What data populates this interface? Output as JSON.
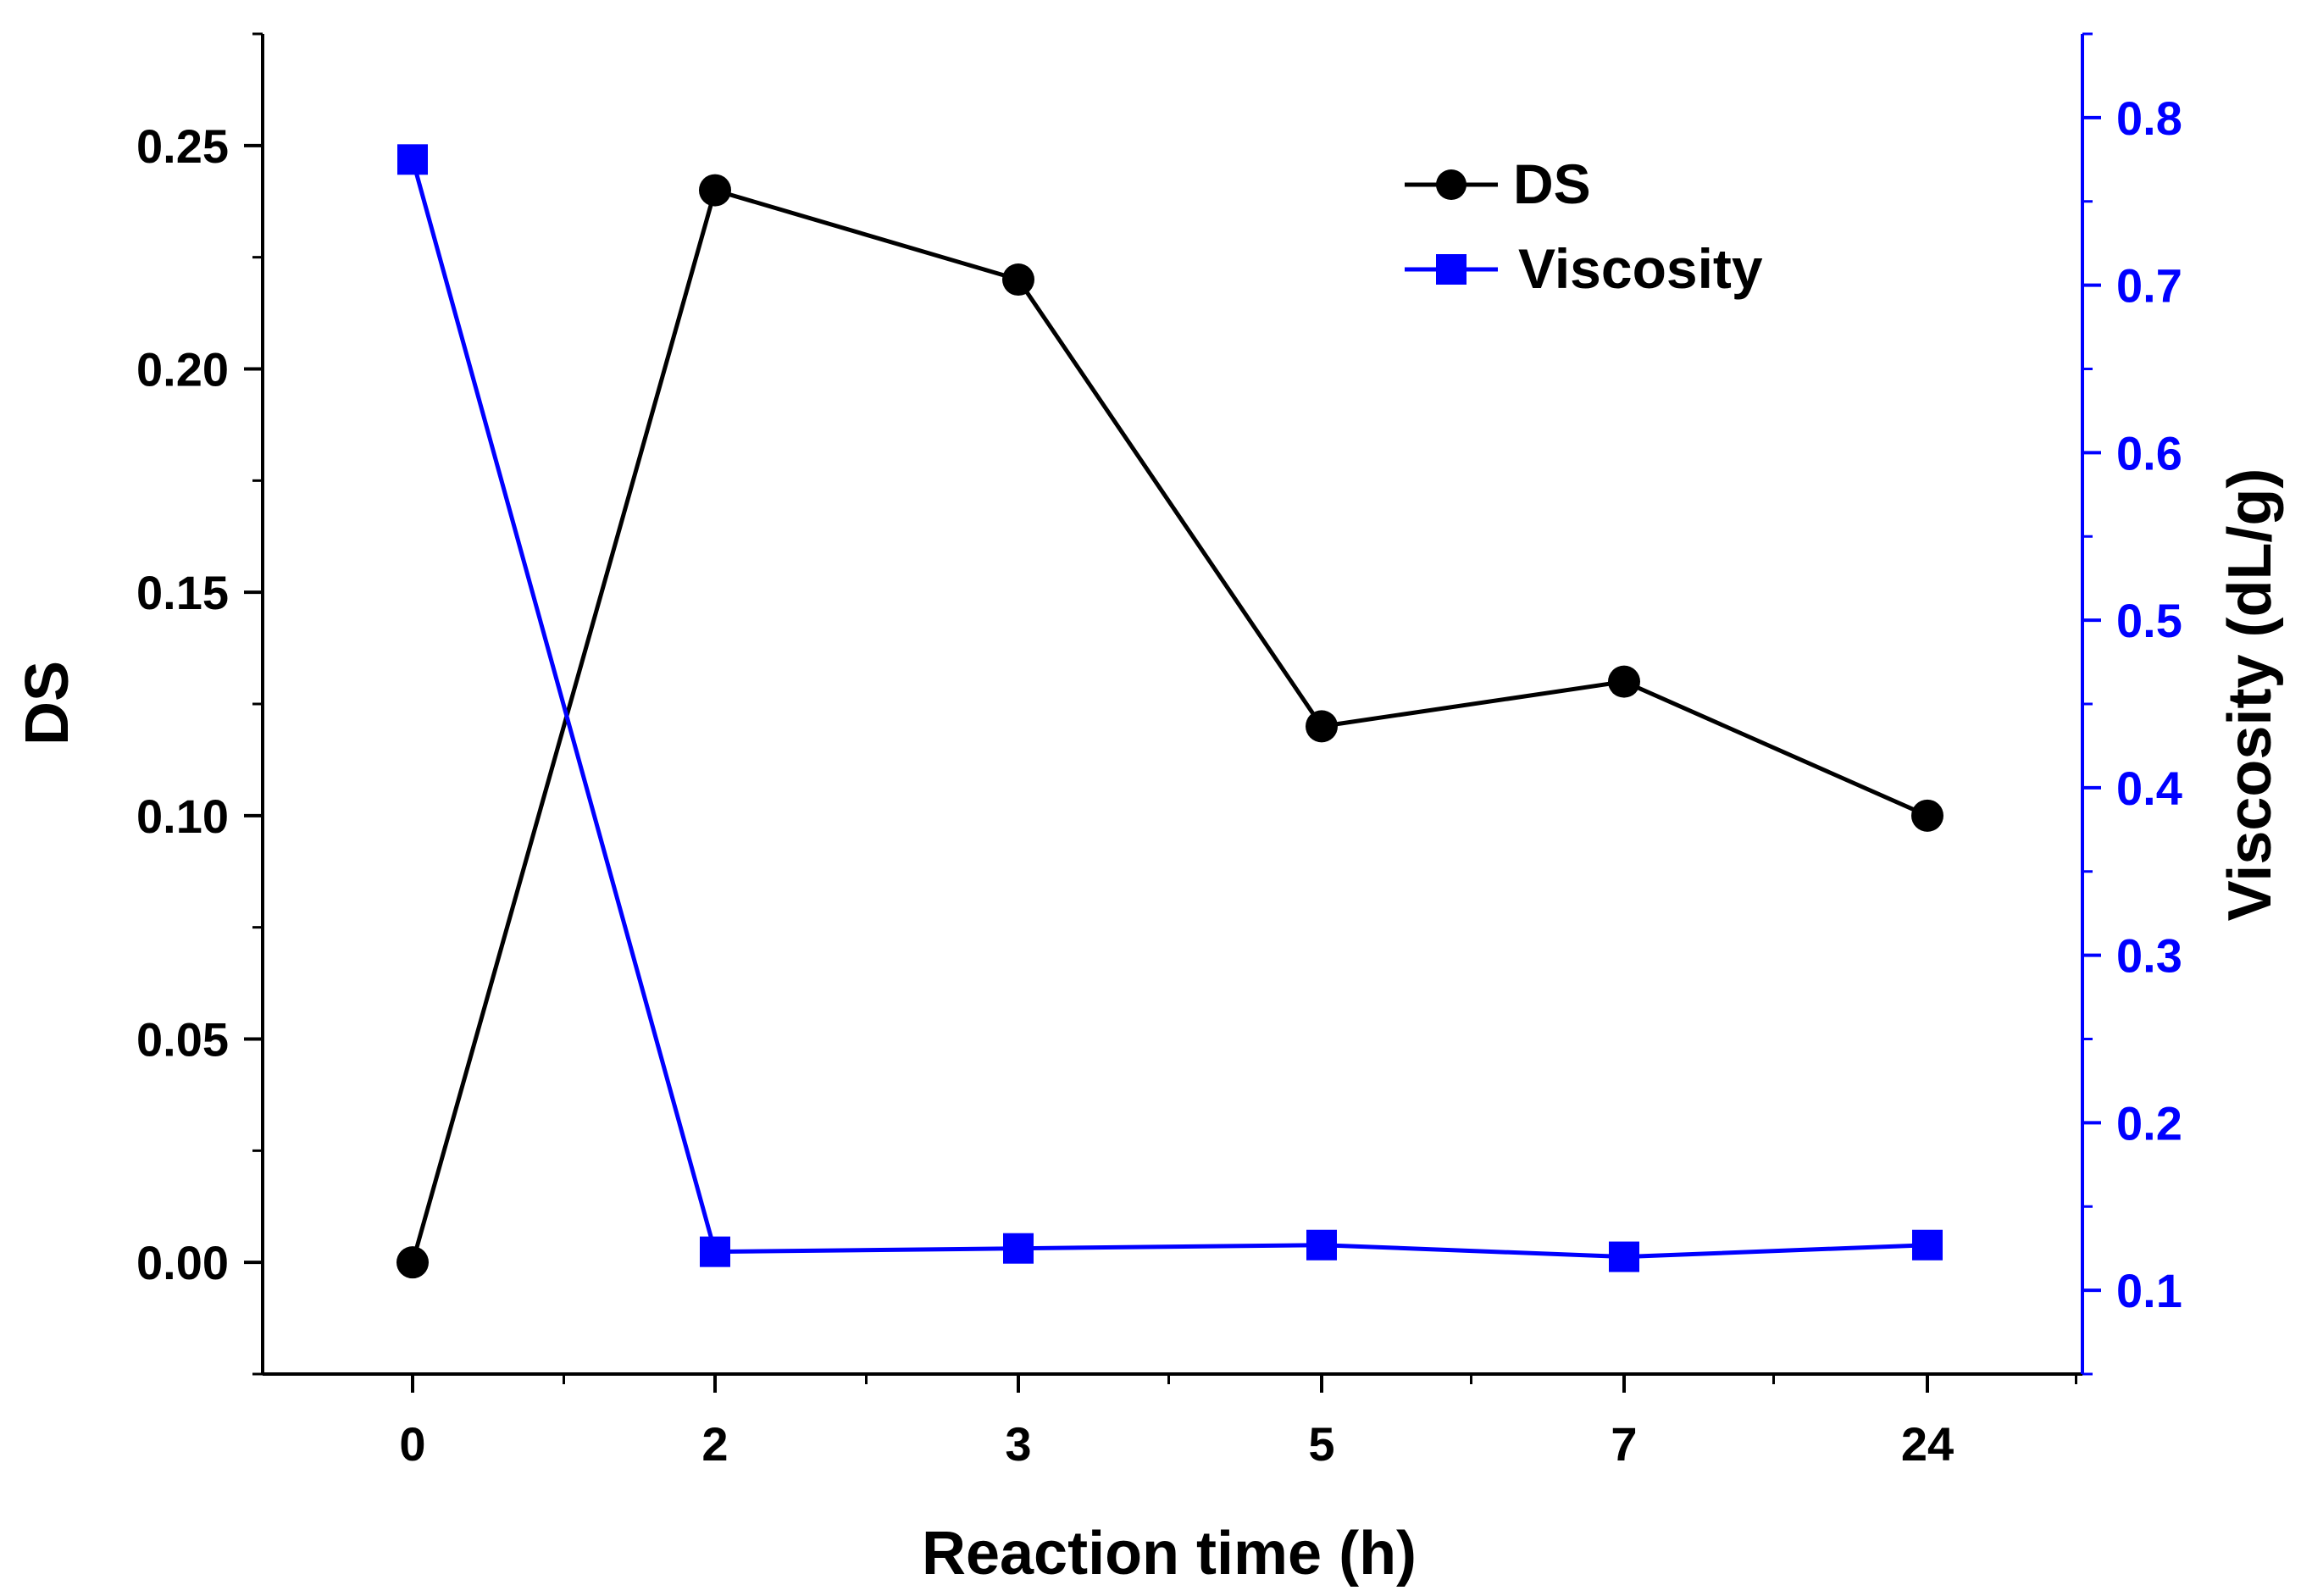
{
  "chart_data": {
    "type": "line",
    "categories": [
      "0",
      "2",
      "3",
      "5",
      "7",
      "24"
    ],
    "xlabel": "Reaction time (h)",
    "ylabel_left": "DS",
    "ylabel_right": "Viscosity (dL/g)",
    "ylim_left": [
      -0.025,
      0.275
    ],
    "yticks_left": [
      "0.00",
      "0.05",
      "0.10",
      "0.15",
      "0.20",
      "0.25"
    ],
    "ylim_right": [
      0.05,
      0.85
    ],
    "yticks_right": [
      "0.1",
      "0.2",
      "0.3",
      "0.4",
      "0.5",
      "0.6",
      "0.7",
      "0.8"
    ],
    "series": [
      {
        "name": "DS",
        "axis": "left",
        "marker": "circle",
        "color": "#000000",
        "values": [
          0.0,
          0.24,
          0.22,
          0.12,
          0.13,
          0.1
        ]
      },
      {
        "name": "Viscosity",
        "axis": "right",
        "marker": "square",
        "color": "#0000ff",
        "values": [
          0.775,
          0.123,
          0.125,
          0.127,
          0.12,
          0.127
        ]
      }
    ],
    "legend": {
      "position": "top-right"
    },
    "grid": false
  },
  "colors": {
    "left_axis": "#000000",
    "right_axis": "#0000ff"
  }
}
